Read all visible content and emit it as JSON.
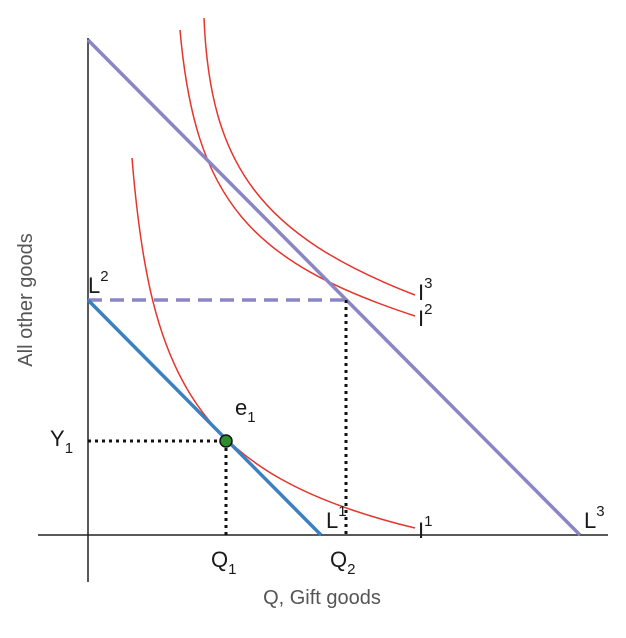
{
  "axes": {
    "x_title": "Q, Gift goods",
    "y_title": "All other goods"
  },
  "budget_lines": [
    {
      "main": "L",
      "sup": "1"
    },
    {
      "main": "L",
      "sup": "2"
    },
    {
      "main": "L",
      "sup": "3"
    }
  ],
  "indifference_curves": [
    {
      "main": "I",
      "sup": "1"
    },
    {
      "main": "I",
      "sup": "2"
    },
    {
      "main": "I",
      "sup": "3"
    }
  ],
  "points": {
    "equilibrium": {
      "main": "e",
      "sub": "1"
    }
  },
  "ticks": {
    "q1": {
      "main": "Q",
      "sub": "1"
    },
    "q2": {
      "main": "Q",
      "sub": "2"
    },
    "y1": {
      "main": "Y",
      "sub": "1"
    }
  },
  "colors": {
    "purple_line": "#8a86c6",
    "blue_line": "#3b80c0",
    "red_curve": "#e5352c",
    "point_fill": "#2e8b2e",
    "dotted": "#111111"
  }
}
